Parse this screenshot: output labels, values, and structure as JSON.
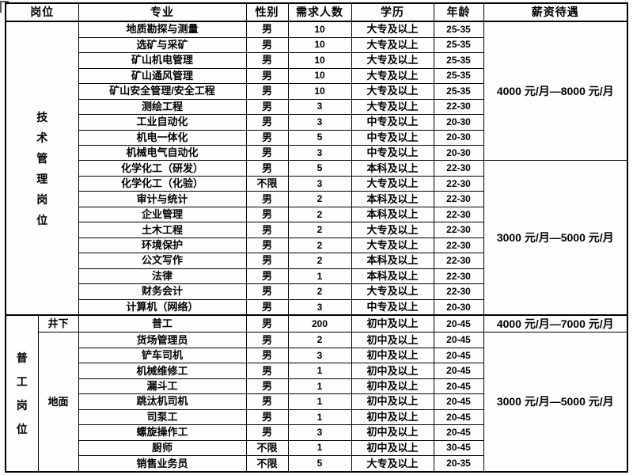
{
  "table": {
    "headers": {
      "position": "岗位",
      "major": "专业",
      "gender": "性别",
      "count": "需求人数",
      "education": "学历",
      "age": "年龄",
      "salary": "薪资待遇"
    },
    "position_groups": {
      "technical": "技术管理岗位",
      "general": "普工岗位",
      "underground": "井下",
      "surface": "地面"
    },
    "rows": [
      {
        "major": "地质勘探与测量",
        "gender": "男",
        "count": "10",
        "education": "大专及以上",
        "age": "25-35"
      },
      {
        "major": "选矿与采矿",
        "gender": "男",
        "count": "10",
        "education": "大专及以上",
        "age": "25-35"
      },
      {
        "major": "矿山机电管理",
        "gender": "男",
        "count": "10",
        "education": "大专及以上",
        "age": "25-35"
      },
      {
        "major": "矿山通风管理",
        "gender": "男",
        "count": "10",
        "education": "大专及以上",
        "age": "25-35"
      },
      {
        "major": "矿山安全管理/安全工程",
        "gender": "男",
        "count": "10",
        "education": "大专及以上",
        "age": "25-35"
      },
      {
        "major": "测绘工程",
        "gender": "男",
        "count": "3",
        "education": "大专及以上",
        "age": "22-30"
      },
      {
        "major": "工业自动化",
        "gender": "男",
        "count": "3",
        "education": "中专及以上",
        "age": "20-30"
      },
      {
        "major": "机电一体化",
        "gender": "男",
        "count": "5",
        "education": "中专及以上",
        "age": "20-30"
      },
      {
        "major": "机械电气自动化",
        "gender": "男",
        "count": "3",
        "education": "中专及以上",
        "age": "20-30"
      },
      {
        "major": "化学化工（研发）",
        "gender": "男",
        "count": "5",
        "education": "本科及以上",
        "age": "22-30"
      },
      {
        "major": "化学化工（化验）",
        "gender": "不限",
        "count": "3",
        "education": "大专及以上",
        "age": "22-30"
      },
      {
        "major": "审计与统计",
        "gender": "男",
        "count": "2",
        "education": "本科及以上",
        "age": "22-30"
      },
      {
        "major": "企业管理",
        "gender": "男",
        "count": "2",
        "education": "本科及以上",
        "age": "22-30"
      },
      {
        "major": "土木工程",
        "gender": "男",
        "count": "2",
        "education": "大专及以上",
        "age": "22-30"
      },
      {
        "major": "环境保护",
        "gender": "男",
        "count": "2",
        "education": "大专及以上",
        "age": "22-30"
      },
      {
        "major": "公文写作",
        "gender": "男",
        "count": "2",
        "education": "本科及以上",
        "age": "22-30"
      },
      {
        "major": "法律",
        "gender": "男",
        "count": "1",
        "education": "本科及以上",
        "age": "22-30"
      },
      {
        "major": "财务会计",
        "gender": "男",
        "count": "2",
        "education": "大专及以上",
        "age": "22-30"
      },
      {
        "major": "计算机（网络）",
        "gender": "男",
        "count": "3",
        "education": "中专及以上",
        "age": "20-30"
      },
      {
        "major": "普工",
        "gender": "男",
        "count": "200",
        "education": "初中及以上",
        "age": "20-45"
      },
      {
        "major": "货场管理员",
        "gender": "男",
        "count": "2",
        "education": "初中及以上",
        "age": "20-45"
      },
      {
        "major": "铲车司机",
        "gender": "男",
        "count": "3",
        "education": "初中及以上",
        "age": "20-45"
      },
      {
        "major": "机械维修工",
        "gender": "男",
        "count": "1",
        "education": "初中及以上",
        "age": "20-45"
      },
      {
        "major": "漏斗工",
        "gender": "男",
        "count": "1",
        "education": "初中及以上",
        "age": "20-45"
      },
      {
        "major": "跳汰机司机",
        "gender": "男",
        "count": "1",
        "education": "初中及以上",
        "age": "20-45"
      },
      {
        "major": "司泵工",
        "gender": "男",
        "count": "1",
        "education": "初中及以上",
        "age": "20-45"
      },
      {
        "major": "螺旋操作工",
        "gender": "男",
        "count": "3",
        "education": "初中及以上",
        "age": "20-45"
      },
      {
        "major": "厨师",
        "gender": "不限",
        "count": "1",
        "education": "初中及以上",
        "age": "30-45"
      },
      {
        "major": "销售业务员",
        "gender": "不限",
        "count": "5",
        "education": "大专及以上",
        "age": "20-35"
      }
    ],
    "salary_blocks": [
      {
        "text": "4000 元/月—8000 元/月",
        "row_span": 9
      },
      {
        "text": "3000 元/月—5000 元/月",
        "row_span": 10
      },
      {
        "text": "4000 元/月—7000 元/月",
        "row_span": 1
      },
      {
        "text": "3000 元/月—5000 元/月",
        "row_span": 9
      }
    ]
  }
}
